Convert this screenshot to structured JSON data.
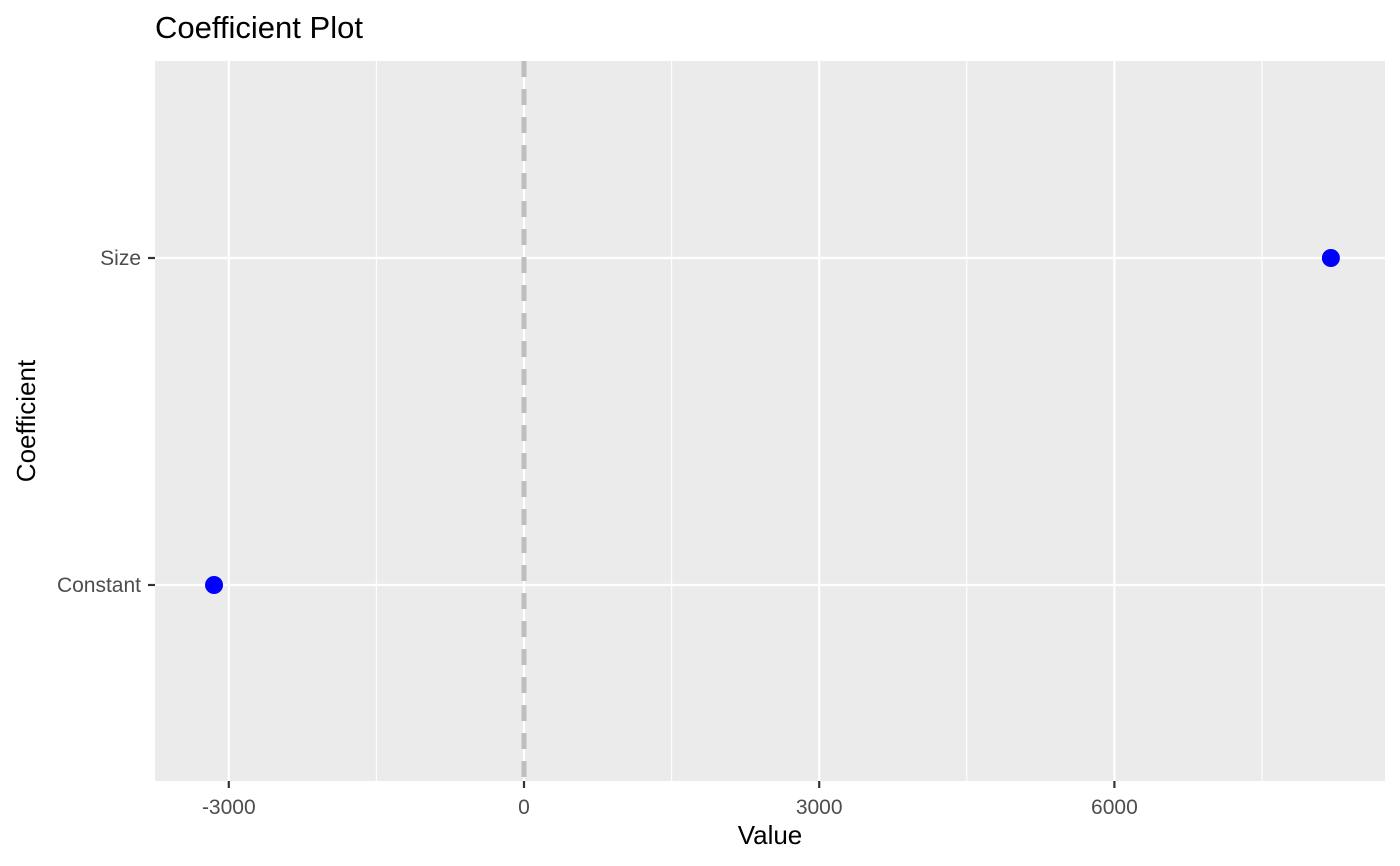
{
  "chart_data": {
    "type": "scatter",
    "title": "Coefficient Plot",
    "xlabel": "Value",
    "ylabel": "Coefficient",
    "categories": [
      "Constant",
      "Size"
    ],
    "series": [
      {
        "points": [
          {
            "category": "Constant",
            "value": -3150
          },
          {
            "category": "Size",
            "value": 8200
          }
        ]
      }
    ],
    "xlim": [
      -3750,
      8750
    ],
    "x_ticks": [
      -3000,
      0,
      3000,
      6000
    ],
    "x_tick_labels": [
      "-3000",
      "0",
      "3000",
      "6000"
    ],
    "x_minor_grid": [
      -1500,
      1500,
      4500,
      7500
    ],
    "reference_line": {
      "x": 0,
      "style": "dashed",
      "color": "#bebebe"
    },
    "point_color": "#0000ff",
    "panel_background": "#ebebeb",
    "grid_color": "#ffffff",
    "grid": true,
    "legend": "none"
  }
}
